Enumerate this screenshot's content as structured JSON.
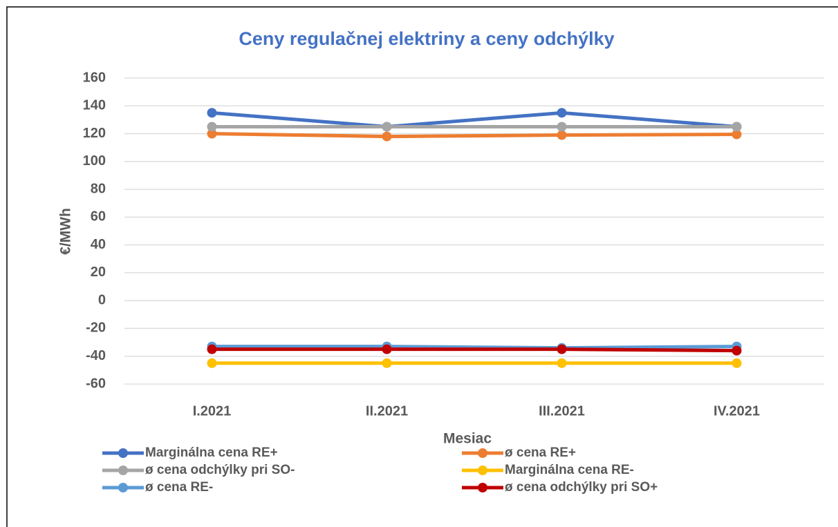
{
  "chart_data": {
    "type": "line",
    "title": "Ceny regulačnej elektriny a ceny odchýlky",
    "xlabel": "Mesiac",
    "ylabel": "€/MWh",
    "categories": [
      "I.2021",
      "II.2021",
      "III.2021",
      "IV.2021"
    ],
    "series": [
      {
        "name": "Marginálna cena RE+",
        "color": "#4472c4",
        "values": [
          135,
          125,
          135,
          125
        ]
      },
      {
        "name": "ø cena RE+",
        "color": "#ed7d31",
        "values": [
          120,
          118,
          119,
          119.5
        ]
      },
      {
        "name": "ø cena odchýlky pri SO-",
        "color": "#a5a5a5",
        "values": [
          125,
          125,
          125,
          125
        ]
      },
      {
        "name": "Marginálna cena RE-",
        "color": "#ffc000",
        "values": [
          -45,
          -45,
          -45,
          -45
        ]
      },
      {
        "name": "ø cena RE-",
        "color": "#5b9bd5",
        "values": [
          -33,
          -33,
          -34,
          -33
        ]
      },
      {
        "name": "ø cena odchýlky pri SO+",
        "color": "#c00000",
        "values": [
          -35,
          -35,
          -35,
          -36
        ]
      }
    ],
    "ylim": [
      -60,
      160
    ],
    "yticks": [
      -60,
      -40,
      -20,
      0,
      20,
      40,
      60,
      80,
      100,
      120,
      140,
      160
    ],
    "grid": true,
    "legend": "bottom"
  }
}
